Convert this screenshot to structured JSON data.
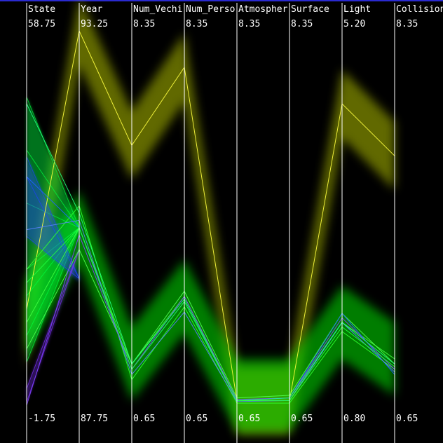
{
  "chart_data": {
    "type": "parallel-coordinates",
    "axes": [
      {
        "name": "State",
        "max": 58.75,
        "min": -1.75,
        "max_label": "58.75",
        "min_label": "-1.75"
      },
      {
        "name": "Year",
        "max": 93.25,
        "min": 87.75,
        "max_label": "93.25",
        "min_label": "87.75"
      },
      {
        "name": "Num_Vechi",
        "max": 8.35,
        "min": 0.65,
        "max_label": "8.35",
        "min_label": "0.65"
      },
      {
        "name": "Num_Perso",
        "max": 8.35,
        "min": 0.65,
        "max_label": "8.35",
        "min_label": "0.65"
      },
      {
        "name": "Atmospher",
        "max": 8.35,
        "min": 0.65,
        "max_label": "8.35",
        "min_label": "0.65"
      },
      {
        "name": "Surface",
        "max": 8.35,
        "min": 0.65,
        "max_label": "8.35",
        "min_label": "0.65"
      },
      {
        "name": "Light",
        "max": 5.2,
        "min": 0.8,
        "max_label": "5.20",
        "min_label": "0.80"
      },
      {
        "name": "Collision",
        "max": 8.35,
        "min": 0.65,
        "max_label": "8.35",
        "min_label": "0.65"
      }
    ],
    "bands": [
      {
        "color": "#b0c000",
        "opacity": 0.55,
        "spread": 0.65,
        "center": [
          10.0,
          93.0,
          5.8,
          7.3,
          0.9,
          0.9,
          4.2,
          5.6
        ]
      },
      {
        "color": "#00e400",
        "opacity": 0.55,
        "spread": 0.7,
        "center": [
          13.0,
          90.3,
          1.6,
          2.9,
          1.0,
          1.0,
          1.8,
          1.7
        ]
      }
    ],
    "lines": [
      {
        "color": "#ffff40",
        "values": [
          14.0,
          93.0,
          5.8,
          7.3,
          0.9,
          0.9,
          4.2,
          5.6
        ]
      },
      {
        "color": "#40ff40",
        "values": [
          12.0,
          90.3,
          1.6,
          2.9,
          0.9,
          0.9,
          1.8,
          1.7
        ]
      },
      {
        "color": "#30ff30",
        "values": [
          20.0,
          90.6,
          1.3,
          2.7,
          0.85,
          0.85,
          1.7,
          1.5
        ]
      },
      {
        "color": "#50ff50",
        "values": [
          8.0,
          90.0,
          1.6,
          3.0,
          0.95,
          1.0,
          1.9,
          1.6
        ]
      },
      {
        "color": "#2060ff",
        "values": [
          34.0,
          90.3,
          1.5,
          2.8,
          0.9,
          0.95,
          1.9,
          1.4
        ]
      },
      {
        "color": "#5a80ff",
        "values": [
          26.0,
          90.4,
          1.4,
          2.6,
          0.88,
          0.9,
          1.8,
          1.45
        ]
      },
      {
        "color": "#8040ff",
        "values": [
          -0.5,
          90.2,
          1.5,
          2.9,
          0.92,
          0.95,
          1.85,
          1.5
        ]
      },
      {
        "color": "#20ff80",
        "values": [
          45.0,
          90.5,
          1.6,
          2.85,
          0.9,
          0.95,
          1.8,
          1.6
        ]
      },
      {
        "color": "#20ff40",
        "values": [
          18.0,
          90.3,
          1.5,
          2.8,
          0.9,
          0.9,
          1.75,
          1.55
        ]
      }
    ],
    "state_fans": [
      {
        "color": "#00ff40",
        "state_values": [
          46.0,
          38.0,
          30.0,
          20.0,
          16.0,
          10.0,
          6.0
        ],
        "to_year": 90.3
      },
      {
        "color": "#2040ff",
        "state_values": [
          37.0,
          34.0,
          25.0
        ],
        "to_year": 89.6
      },
      {
        "color": "#8030ff",
        "state_values": [
          2.0,
          0.0
        ],
        "to_year": 90.0
      }
    ],
    "grid": false,
    "legend": "none"
  }
}
